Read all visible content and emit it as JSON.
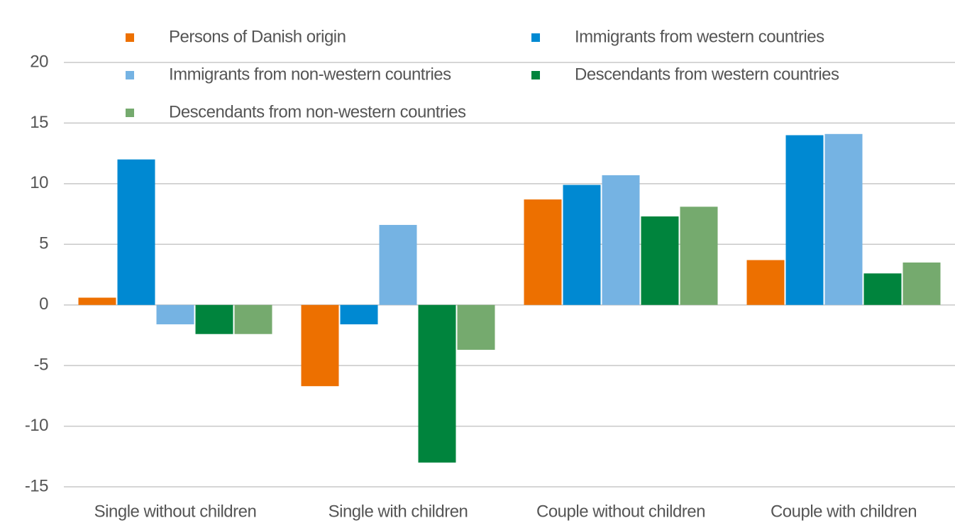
{
  "chart_data": {
    "type": "bar",
    "categories": [
      "Single without children",
      "Single with children",
      "Couple without children",
      "Couple with children"
    ],
    "series": [
      {
        "name": "Persons of Danish origin",
        "color": "#ed7000",
        "values": [
          0.6,
          -6.7,
          8.7,
          3.7
        ]
      },
      {
        "name": "Immigrants from western countries",
        "color": "#0089d2",
        "values": [
          12.0,
          -1.6,
          9.9,
          14.0
        ]
      },
      {
        "name": "Immigrants from non-western countries",
        "color": "#75b3e3",
        "values": [
          -1.6,
          6.6,
          10.7,
          14.1
        ]
      },
      {
        "name": "Descendants from western countries",
        "color": "#00843d",
        "values": [
          -2.4,
          -13.0,
          7.3,
          2.6
        ]
      },
      {
        "name": "Descendants from non-western countries",
        "color": "#75aa6e",
        "values": [
          -2.4,
          -3.7,
          8.1,
          3.5
        ]
      }
    ],
    "ylim": [
      -15,
      20
    ],
    "yticks": [
      -15,
      -10,
      -5,
      0,
      5,
      10,
      15,
      20
    ],
    "grid": true,
    "legend": "top"
  }
}
